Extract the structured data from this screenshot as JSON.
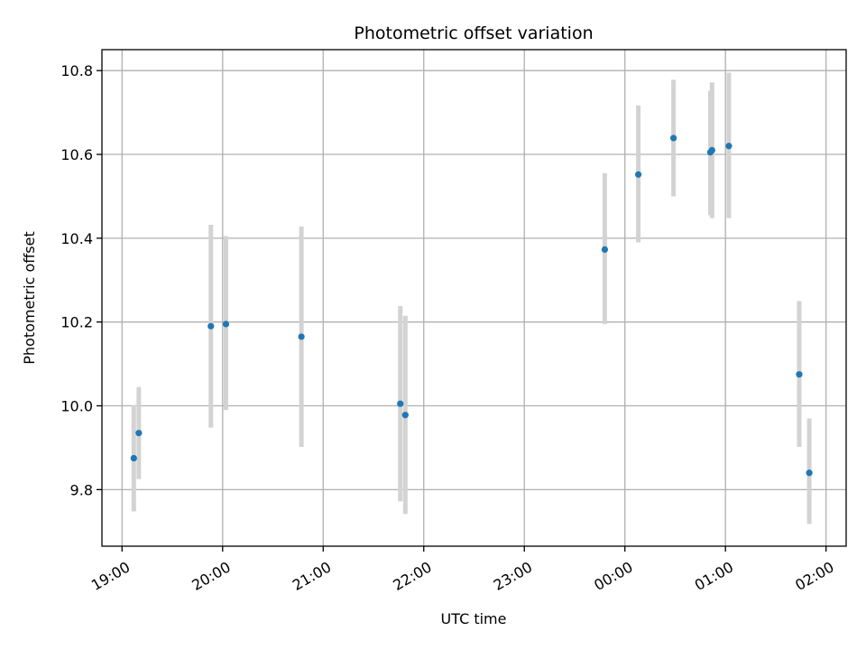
{
  "chart_data": {
    "type": "scatter",
    "title": "Photometric offset variation",
    "xlabel": "UTC time",
    "ylabel": "Photometric offset",
    "xlim": [
      "18:48",
      "02:12"
    ],
    "ylim": [
      9.665,
      10.85
    ],
    "x_ticks": [
      "19:00",
      "20:00",
      "21:00",
      "22:00",
      "23:00",
      "00:00",
      "01:00",
      "02:00"
    ],
    "y_ticks": [
      "9.8",
      "10.0",
      "10.2",
      "10.4",
      "10.6",
      "10.8"
    ],
    "grid": true,
    "colors": {
      "points": "#1f77b4",
      "errorbars": "#d3d3d3",
      "grid": "#b0b0b0"
    },
    "series": [
      {
        "points": [
          {
            "x": "19:07",
            "y": 9.875,
            "ylow": 9.748,
            "yhigh": 10.002
          },
          {
            "x": "19:10",
            "y": 9.935,
            "ylow": 9.825,
            "yhigh": 10.045
          },
          {
            "x": "19:53",
            "y": 10.19,
            "ylow": 9.948,
            "yhigh": 10.432
          },
          {
            "x": "20:02",
            "y": 10.195,
            "ylow": 9.99,
            "yhigh": 10.405
          },
          {
            "x": "20:47",
            "y": 10.165,
            "ylow": 9.902,
            "yhigh": 10.428
          },
          {
            "x": "21:46",
            "y": 10.005,
            "ylow": 9.772,
            "yhigh": 10.238
          },
          {
            "x": "21:49",
            "y": 9.978,
            "ylow": 9.742,
            "yhigh": 10.215
          },
          {
            "x": "23:48",
            "y": 10.373,
            "ylow": 10.195,
            "yhigh": 10.555
          },
          {
            "x": "00:08",
            "y": 10.552,
            "ylow": 10.39,
            "yhigh": 10.717
          },
          {
            "x": "00:29",
            "y": 10.639,
            "ylow": 10.5,
            "yhigh": 10.778
          },
          {
            "x": "00:51",
            "y": 10.605,
            "ylow": 10.455,
            "yhigh": 10.752
          },
          {
            "x": "00:52",
            "y": 10.61,
            "ylow": 10.448,
            "yhigh": 10.772
          },
          {
            "x": "01:02",
            "y": 10.62,
            "ylow": 10.448,
            "yhigh": 10.795
          },
          {
            "x": "01:44",
            "y": 10.075,
            "ylow": 9.902,
            "yhigh": 10.25
          },
          {
            "x": "01:50",
            "y": 9.84,
            "ylow": 9.718,
            "yhigh": 9.97
          }
        ]
      }
    ]
  }
}
